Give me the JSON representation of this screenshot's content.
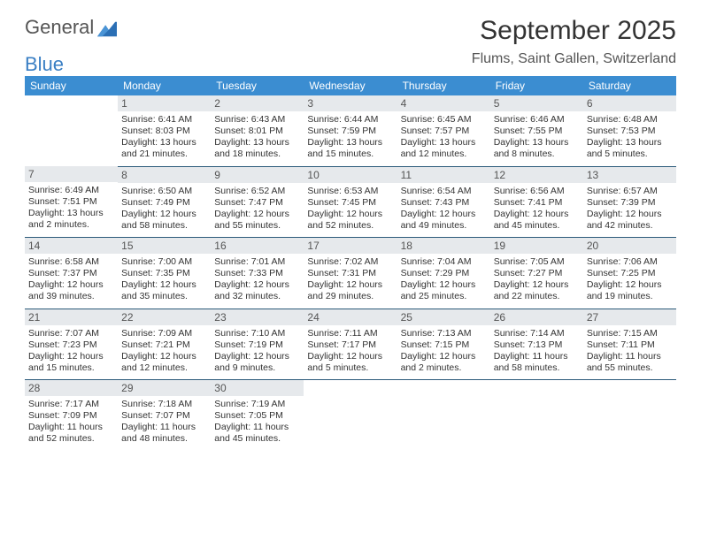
{
  "logo": {
    "word1": "General",
    "word2": "Blue"
  },
  "title": "September 2025",
  "location": "Flums, Saint Gallen, Switzerland",
  "colors": {
    "header_bg": "#3b8dd1",
    "header_text": "#ffffff",
    "daynum_bg": "#e6e9ec",
    "daynum_text": "#555555",
    "border": "#2c5a7a",
    "logo_blue": "#3a7fc4"
  },
  "weekdays": [
    "Sunday",
    "Monday",
    "Tuesday",
    "Wednesday",
    "Thursday",
    "Friday",
    "Saturday"
  ],
  "weeks": [
    [
      {
        "blank": true
      },
      {
        "day": "1",
        "sunrise": "Sunrise: 6:41 AM",
        "sunset": "Sunset: 8:03 PM",
        "daylight1": "Daylight: 13 hours",
        "daylight2": "and 21 minutes."
      },
      {
        "day": "2",
        "sunrise": "Sunrise: 6:43 AM",
        "sunset": "Sunset: 8:01 PM",
        "daylight1": "Daylight: 13 hours",
        "daylight2": "and 18 minutes."
      },
      {
        "day": "3",
        "sunrise": "Sunrise: 6:44 AM",
        "sunset": "Sunset: 7:59 PM",
        "daylight1": "Daylight: 13 hours",
        "daylight2": "and 15 minutes."
      },
      {
        "day": "4",
        "sunrise": "Sunrise: 6:45 AM",
        "sunset": "Sunset: 7:57 PM",
        "daylight1": "Daylight: 13 hours",
        "daylight2": "and 12 minutes."
      },
      {
        "day": "5",
        "sunrise": "Sunrise: 6:46 AM",
        "sunset": "Sunset: 7:55 PM",
        "daylight1": "Daylight: 13 hours",
        "daylight2": "and 8 minutes."
      },
      {
        "day": "6",
        "sunrise": "Sunrise: 6:48 AM",
        "sunset": "Sunset: 7:53 PM",
        "daylight1": "Daylight: 13 hours",
        "daylight2": "and 5 minutes."
      }
    ],
    [
      {
        "day": "7",
        "sunrise": "Sunrise: 6:49 AM",
        "sunset": "Sunset: 7:51 PM",
        "daylight1": "Daylight: 13 hours",
        "daylight2": "and 2 minutes."
      },
      {
        "day": "8",
        "sunrise": "Sunrise: 6:50 AM",
        "sunset": "Sunset: 7:49 PM",
        "daylight1": "Daylight: 12 hours",
        "daylight2": "and 58 minutes."
      },
      {
        "day": "9",
        "sunrise": "Sunrise: 6:52 AM",
        "sunset": "Sunset: 7:47 PM",
        "daylight1": "Daylight: 12 hours",
        "daylight2": "and 55 minutes."
      },
      {
        "day": "10",
        "sunrise": "Sunrise: 6:53 AM",
        "sunset": "Sunset: 7:45 PM",
        "daylight1": "Daylight: 12 hours",
        "daylight2": "and 52 minutes."
      },
      {
        "day": "11",
        "sunrise": "Sunrise: 6:54 AM",
        "sunset": "Sunset: 7:43 PM",
        "daylight1": "Daylight: 12 hours",
        "daylight2": "and 49 minutes."
      },
      {
        "day": "12",
        "sunrise": "Sunrise: 6:56 AM",
        "sunset": "Sunset: 7:41 PM",
        "daylight1": "Daylight: 12 hours",
        "daylight2": "and 45 minutes."
      },
      {
        "day": "13",
        "sunrise": "Sunrise: 6:57 AM",
        "sunset": "Sunset: 7:39 PM",
        "daylight1": "Daylight: 12 hours",
        "daylight2": "and 42 minutes."
      }
    ],
    [
      {
        "day": "14",
        "sunrise": "Sunrise: 6:58 AM",
        "sunset": "Sunset: 7:37 PM",
        "daylight1": "Daylight: 12 hours",
        "daylight2": "and 39 minutes."
      },
      {
        "day": "15",
        "sunrise": "Sunrise: 7:00 AM",
        "sunset": "Sunset: 7:35 PM",
        "daylight1": "Daylight: 12 hours",
        "daylight2": "and 35 minutes."
      },
      {
        "day": "16",
        "sunrise": "Sunrise: 7:01 AM",
        "sunset": "Sunset: 7:33 PM",
        "daylight1": "Daylight: 12 hours",
        "daylight2": "and 32 minutes."
      },
      {
        "day": "17",
        "sunrise": "Sunrise: 7:02 AM",
        "sunset": "Sunset: 7:31 PM",
        "daylight1": "Daylight: 12 hours",
        "daylight2": "and 29 minutes."
      },
      {
        "day": "18",
        "sunrise": "Sunrise: 7:04 AM",
        "sunset": "Sunset: 7:29 PM",
        "daylight1": "Daylight: 12 hours",
        "daylight2": "and 25 minutes."
      },
      {
        "day": "19",
        "sunrise": "Sunrise: 7:05 AM",
        "sunset": "Sunset: 7:27 PM",
        "daylight1": "Daylight: 12 hours",
        "daylight2": "and 22 minutes."
      },
      {
        "day": "20",
        "sunrise": "Sunrise: 7:06 AM",
        "sunset": "Sunset: 7:25 PM",
        "daylight1": "Daylight: 12 hours",
        "daylight2": "and 19 minutes."
      }
    ],
    [
      {
        "day": "21",
        "sunrise": "Sunrise: 7:07 AM",
        "sunset": "Sunset: 7:23 PM",
        "daylight1": "Daylight: 12 hours",
        "daylight2": "and 15 minutes."
      },
      {
        "day": "22",
        "sunrise": "Sunrise: 7:09 AM",
        "sunset": "Sunset: 7:21 PM",
        "daylight1": "Daylight: 12 hours",
        "daylight2": "and 12 minutes."
      },
      {
        "day": "23",
        "sunrise": "Sunrise: 7:10 AM",
        "sunset": "Sunset: 7:19 PM",
        "daylight1": "Daylight: 12 hours",
        "daylight2": "and 9 minutes."
      },
      {
        "day": "24",
        "sunrise": "Sunrise: 7:11 AM",
        "sunset": "Sunset: 7:17 PM",
        "daylight1": "Daylight: 12 hours",
        "daylight2": "and 5 minutes."
      },
      {
        "day": "25",
        "sunrise": "Sunrise: 7:13 AM",
        "sunset": "Sunset: 7:15 PM",
        "daylight1": "Daylight: 12 hours",
        "daylight2": "and 2 minutes."
      },
      {
        "day": "26",
        "sunrise": "Sunrise: 7:14 AM",
        "sunset": "Sunset: 7:13 PM",
        "daylight1": "Daylight: 11 hours",
        "daylight2": "and 58 minutes."
      },
      {
        "day": "27",
        "sunrise": "Sunrise: 7:15 AM",
        "sunset": "Sunset: 7:11 PM",
        "daylight1": "Daylight: 11 hours",
        "daylight2": "and 55 minutes."
      }
    ],
    [
      {
        "day": "28",
        "sunrise": "Sunrise: 7:17 AM",
        "sunset": "Sunset: 7:09 PM",
        "daylight1": "Daylight: 11 hours",
        "daylight2": "and 52 minutes."
      },
      {
        "day": "29",
        "sunrise": "Sunrise: 7:18 AM",
        "sunset": "Sunset: 7:07 PM",
        "daylight1": "Daylight: 11 hours",
        "daylight2": "and 48 minutes."
      },
      {
        "day": "30",
        "sunrise": "Sunrise: 7:19 AM",
        "sunset": "Sunset: 7:05 PM",
        "daylight1": "Daylight: 11 hours",
        "daylight2": "and 45 minutes."
      },
      {
        "blank": true
      },
      {
        "blank": true
      },
      {
        "blank": true
      },
      {
        "blank": true
      }
    ]
  ]
}
